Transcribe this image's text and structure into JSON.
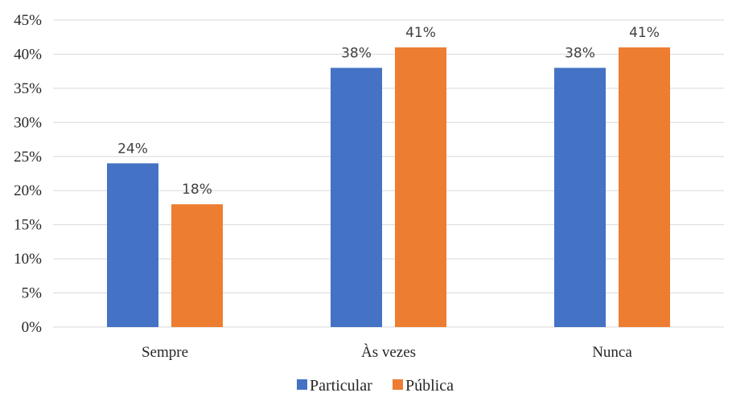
{
  "chart_data": {
    "type": "bar",
    "categories": [
      "Sempre",
      "Às vezes",
      "Nunca"
    ],
    "series": [
      {
        "name": "Particular",
        "values": [
          24,
          38,
          38
        ],
        "color": "#4472C4",
        "labels": [
          "24%",
          "38%",
          "38%"
        ]
      },
      {
        "name": "Pública",
        "values": [
          18,
          41,
          41
        ],
        "color": "#ED7D31",
        "labels": [
          "18%",
          "41%",
          "41%"
        ]
      }
    ],
    "yticks": [
      0,
      5,
      10,
      15,
      20,
      25,
      30,
      35,
      40,
      45
    ],
    "ytick_labels": [
      "0%",
      "5%",
      "10%",
      "15%",
      "20%",
      "25%",
      "30%",
      "35%",
      "40%",
      "45%"
    ],
    "ylim": [
      0,
      45
    ],
    "grid": true,
    "legend_position": "bottom"
  }
}
